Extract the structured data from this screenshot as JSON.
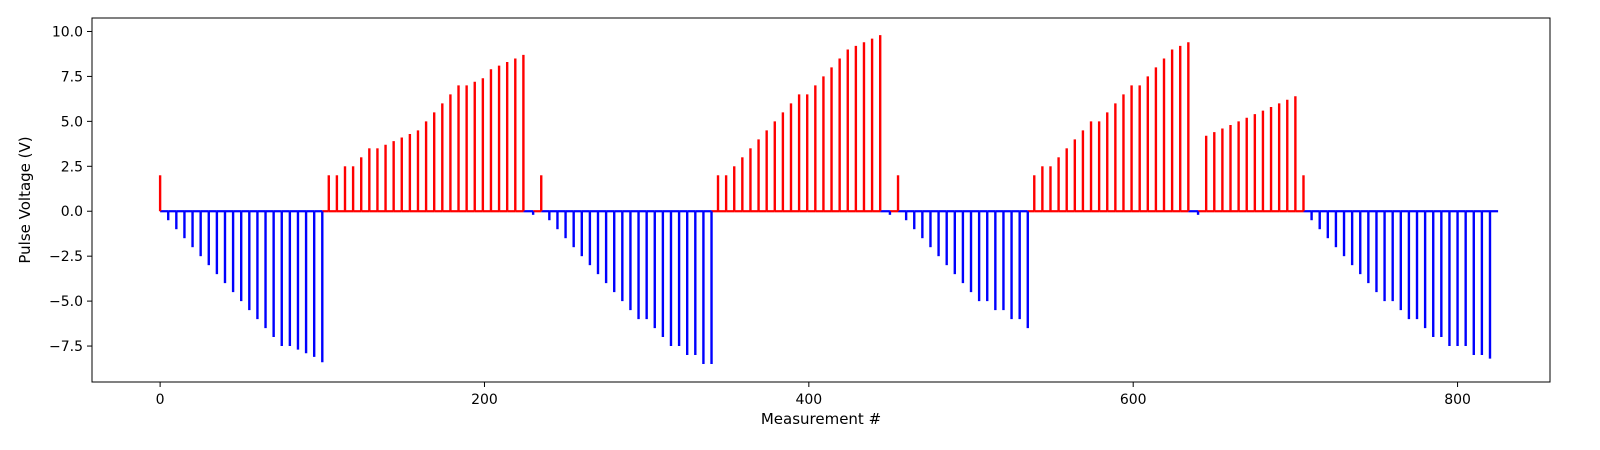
{
  "chart_data": {
    "type": "bar",
    "xlabel": "Measurement #",
    "ylabel": "Pulse Voltage (V)",
    "xlim": [
      -42,
      857
    ],
    "ylim": [
      -9.5,
      10.75
    ],
    "xticks": [
      0,
      200,
      400,
      600,
      800
    ],
    "yticks": [
      -7.5,
      -5.0,
      -2.5,
      0.0,
      2.5,
      5.0,
      7.5,
      10.0
    ],
    "ytick_labels": [
      "−7.5",
      "−5.0",
      "−2.5",
      "0.0",
      "2.5",
      "5.0",
      "7.5",
      "10.0"
    ],
    "grid": false,
    "colors": {
      "positive": "#ff0000",
      "negative": "#0000ff"
    },
    "x_end": 825,
    "pulses": [
      [
        0,
        2.0
      ],
      [
        5,
        -0.5
      ],
      [
        10,
        -1.0
      ],
      [
        15,
        -1.5
      ],
      [
        20,
        -2.0
      ],
      [
        25,
        -2.5
      ],
      [
        30,
        -3.0
      ],
      [
        35,
        -3.5
      ],
      [
        40,
        -4.0
      ],
      [
        45,
        -4.5
      ],
      [
        50,
        -5.0
      ],
      [
        55,
        -5.5
      ],
      [
        60,
        -6.0
      ],
      [
        65,
        -6.5
      ],
      [
        70,
        -7.0
      ],
      [
        75,
        -7.5
      ],
      [
        80,
        -7.5
      ],
      [
        85,
        -7.7
      ],
      [
        90,
        -7.9
      ],
      [
        95,
        -8.1
      ],
      [
        100,
        -8.4
      ],
      [
        104,
        2.0
      ],
      [
        109,
        2.0
      ],
      [
        114,
        2.5
      ],
      [
        119,
        2.5
      ],
      [
        124,
        3.0
      ],
      [
        129,
        3.5
      ],
      [
        134,
        3.5
      ],
      [
        139,
        3.7
      ],
      [
        144,
        3.9
      ],
      [
        149,
        4.1
      ],
      [
        154,
        4.3
      ],
      [
        159,
        4.5
      ],
      [
        164,
        5.0
      ],
      [
        169,
        5.5
      ],
      [
        174,
        6.0
      ],
      [
        179,
        6.5
      ],
      [
        184,
        7.0
      ],
      [
        189,
        7.0
      ],
      [
        194,
        7.2
      ],
      [
        199,
        7.4
      ],
      [
        204,
        7.9
      ],
      [
        209,
        8.1
      ],
      [
        214,
        8.3
      ],
      [
        219,
        8.5
      ],
      [
        224,
        8.7
      ],
      [
        230,
        -0.2
      ],
      [
        235,
        2.0
      ],
      [
        240,
        -0.5
      ],
      [
        245,
        -1.0
      ],
      [
        250,
        -1.5
      ],
      [
        255,
        -2.0
      ],
      [
        260,
        -2.5
      ],
      [
        265,
        -3.0
      ],
      [
        270,
        -3.5
      ],
      [
        275,
        -4.0
      ],
      [
        280,
        -4.5
      ],
      [
        285,
        -5.0
      ],
      [
        290,
        -5.5
      ],
      [
        295,
        -6.0
      ],
      [
        300,
        -6.0
      ],
      [
        305,
        -6.5
      ],
      [
        310,
        -7.0
      ],
      [
        315,
        -7.5
      ],
      [
        320,
        -7.5
      ],
      [
        325,
        -8.0
      ],
      [
        330,
        -8.0
      ],
      [
        335,
        -8.5
      ],
      [
        340,
        -8.5
      ],
      [
        344,
        2.0
      ],
      [
        349,
        2.0
      ],
      [
        354,
        2.5
      ],
      [
        359,
        3.0
      ],
      [
        364,
        3.5
      ],
      [
        369,
        4.0
      ],
      [
        374,
        4.5
      ],
      [
        379,
        5.0
      ],
      [
        384,
        5.5
      ],
      [
        389,
        6.0
      ],
      [
        394,
        6.5
      ],
      [
        399,
        6.5
      ],
      [
        404,
        7.0
      ],
      [
        409,
        7.5
      ],
      [
        414,
        8.0
      ],
      [
        419,
        8.5
      ],
      [
        424,
        9.0
      ],
      [
        429,
        9.2
      ],
      [
        434,
        9.4
      ],
      [
        439,
        9.6
      ],
      [
        444,
        9.8
      ],
      [
        450,
        -0.2
      ],
      [
        455,
        2.0
      ],
      [
        460,
        -0.5
      ],
      [
        465,
        -1.0
      ],
      [
        470,
        -1.5
      ],
      [
        475,
        -2.0
      ],
      [
        480,
        -2.5
      ],
      [
        485,
        -3.0
      ],
      [
        490,
        -3.5
      ],
      [
        495,
        -4.0
      ],
      [
        500,
        -4.5
      ],
      [
        505,
        -5.0
      ],
      [
        510,
        -5.0
      ],
      [
        515,
        -5.5
      ],
      [
        520,
        -5.5
      ],
      [
        525,
        -6.0
      ],
      [
        530,
        -6.0
      ],
      [
        535,
        -6.5
      ],
      [
        539,
        2.0
      ],
      [
        544,
        2.5
      ],
      [
        549,
        2.5
      ],
      [
        554,
        3.0
      ],
      [
        559,
        3.5
      ],
      [
        564,
        4.0
      ],
      [
        569,
        4.5
      ],
      [
        574,
        5.0
      ],
      [
        579,
        5.0
      ],
      [
        584,
        5.5
      ],
      [
        589,
        6.0
      ],
      [
        594,
        6.5
      ],
      [
        599,
        7.0
      ],
      [
        604,
        7.0
      ],
      [
        609,
        7.5
      ],
      [
        614,
        8.0
      ],
      [
        619,
        8.5
      ],
      [
        624,
        9.0
      ],
      [
        629,
        9.2
      ],
      [
        634,
        9.4
      ],
      [
        640,
        -0.2
      ],
      [
        645,
        4.2
      ],
      [
        650,
        4.4
      ],
      [
        655,
        4.6
      ],
      [
        660,
        4.8
      ],
      [
        665,
        5.0
      ],
      [
        670,
        5.2
      ],
      [
        675,
        5.4
      ],
      [
        680,
        5.6
      ],
      [
        685,
        5.8
      ],
      [
        690,
        6.0
      ],
      [
        695,
        6.2
      ],
      [
        700,
        6.4
      ],
      [
        705,
        2.0
      ],
      [
        710,
        -0.5
      ],
      [
        715,
        -1.0
      ],
      [
        720,
        -1.5
      ],
      [
        725,
        -2.0
      ],
      [
        730,
        -2.5
      ],
      [
        735,
        -3.0
      ],
      [
        740,
        -3.5
      ],
      [
        745,
        -4.0
      ],
      [
        750,
        -4.5
      ],
      [
        755,
        -5.0
      ],
      [
        760,
        -5.0
      ],
      [
        765,
        -5.5
      ],
      [
        770,
        -6.0
      ],
      [
        775,
        -6.0
      ],
      [
        780,
        -6.5
      ],
      [
        785,
        -7.0
      ],
      [
        790,
        -7.0
      ],
      [
        795,
        -7.5
      ],
      [
        800,
        -7.5
      ],
      [
        805,
        -7.5
      ],
      [
        810,
        -8.0
      ],
      [
        815,
        -8.0
      ],
      [
        820,
        -8.2
      ]
    ]
  }
}
